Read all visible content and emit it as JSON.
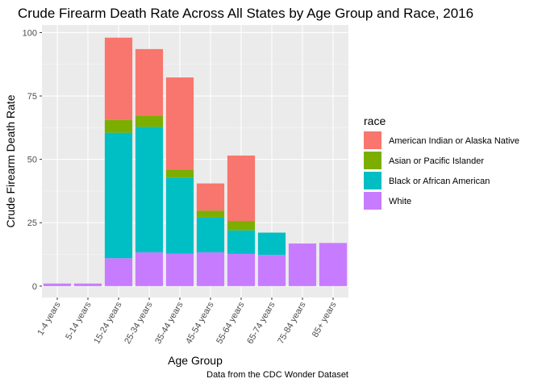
{
  "chart_data": {
    "type": "bar",
    "stacked": true,
    "title": "Crude Firearm Death Rate Across All States by Age Group and Race, 2016",
    "xlabel": "Age Group",
    "ylabel": "Crude Firearm Death Rate",
    "caption": "Data from the CDC Wonder Dataset",
    "ylim": [
      -4.5,
      103
    ],
    "yticks": [
      0,
      25,
      50,
      75,
      100
    ],
    "grid": true,
    "legend": {
      "title": "race",
      "placement": "right"
    },
    "categories": [
      "1-4 years",
      "5-14 years",
      "15-24 years",
      "25-34 years",
      "35-44 years",
      "45-54 years",
      "55-64 years",
      "65-74 years",
      "75-84 years",
      "85+ years"
    ],
    "series": [
      {
        "name": "White",
        "color": "#C77CFF",
        "values": [
          1.0,
          1.0,
          11.0,
          13.3,
          12.8,
          13.3,
          12.7,
          12.3,
          16.8,
          17.0
        ]
      },
      {
        "name": "Black or African American",
        "color": "#00BFC4",
        "values": [
          0,
          0,
          49.5,
          49.5,
          30.0,
          13.7,
          9.3,
          8.8,
          0,
          0
        ]
      },
      {
        "name": "Asian or Pacific Islander",
        "color": "#7CAE00",
        "values": [
          0,
          0,
          5.0,
          4.5,
          3.2,
          2.8,
          3.7,
          0,
          0,
          0
        ]
      },
      {
        "name": "American Indian or Alaska Native",
        "color": "#F8766D",
        "values": [
          0,
          0,
          32.5,
          26.2,
          36.3,
          10.7,
          25.8,
          0,
          0,
          0
        ]
      }
    ],
    "legend_order": [
      "American Indian or Alaska Native",
      "Asian or Pacific Islander",
      "Black or African American",
      "White"
    ]
  }
}
